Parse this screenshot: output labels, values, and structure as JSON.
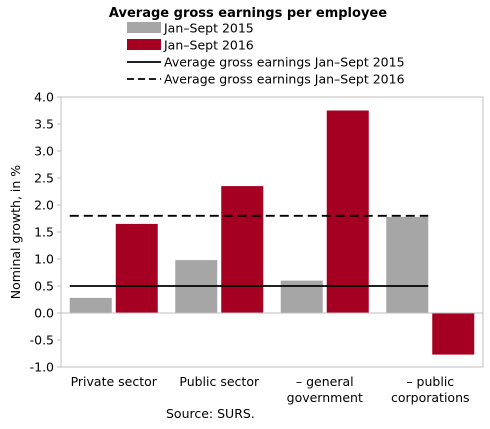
{
  "chart_data": {
    "type": "bar",
    "title": "Average gross earnings per employee",
    "ylabel": "Nominal growth, in %",
    "xlabel": "",
    "ylim": [
      -1.0,
      4.0
    ],
    "yticks": [
      "-1.0",
      "-0.5",
      "0.0",
      "0.5",
      "1.0",
      "1.5",
      "2.0",
      "2.5",
      "3.0",
      "3.5",
      "4.0"
    ],
    "categories": [
      [
        "Private sector"
      ],
      [
        "Public sector"
      ],
      [
        "– general",
        "government"
      ],
      [
        "– public",
        "corporations"
      ]
    ],
    "series": [
      {
        "name": "Jan–Sept 2015",
        "values": [
          0.28,
          0.98,
          0.6,
          1.78
        ],
        "color": "#a6a6a6"
      },
      {
        "name": "Jan–Sept 2016",
        "values": [
          1.65,
          2.35,
          3.75,
          -0.77
        ],
        "color": "#a50021"
      }
    ],
    "reference_lines": [
      {
        "name": "Average gross earnings Jan–Sept 2015",
        "value": 0.5,
        "style": "solid",
        "color": "#000000"
      },
      {
        "name": "Average gross earnings Jan–Sept 2016",
        "value": 1.8,
        "style": "dashed",
        "color": "#000000"
      }
    ],
    "legend_position": "top",
    "grid": false,
    "source": "Source: SURS."
  }
}
